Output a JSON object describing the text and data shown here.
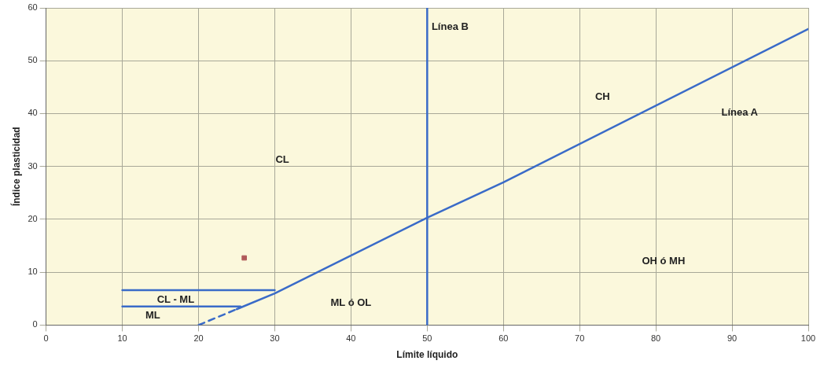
{
  "chart_data": {
    "type": "line",
    "xlabel": "Límite líquido",
    "ylabel": "Índice plasticidad",
    "xlim": [
      0,
      100
    ],
    "xticks": [
      0,
      10,
      20,
      30,
      40,
      50,
      60,
      70,
      80,
      90,
      100
    ],
    "ylim": [
      0,
      60
    ],
    "yticks": [
      0,
      10,
      20,
      30,
      40,
      50,
      60
    ],
    "grid": true,
    "series": [
      {
        "type": "line",
        "color": "#3a6bc8",
        "x": [
          20,
          25
        ],
        "values": [
          0,
          3
        ],
        "line_style": "dashed",
        "marker": "none"
      },
      {
        "type": "line",
        "color": "#3a6bc8",
        "x": [
          25,
          30,
          50,
          60,
          100
        ],
        "values": [
          3,
          6,
          20.3,
          27,
          56
        ],
        "line_style": "solid",
        "marker": "none"
      },
      {
        "type": "line",
        "color": "#3a6bc8",
        "x": [
          50,
          50
        ],
        "values": [
          0,
          60
        ],
        "line_style": "solid",
        "marker": "none"
      },
      {
        "type": "line",
        "color": "#3a6bc8",
        "x": [
          10,
          30
        ],
        "values": [
          6.6,
          6.6
        ],
        "line_style": "solid",
        "marker": "none"
      },
      {
        "type": "line",
        "color": "#3a6bc8",
        "x": [
          10,
          25.5
        ],
        "values": [
          3.5,
          3.5
        ],
        "line_style": "solid",
        "marker": "none"
      },
      {
        "type": "scatter",
        "color": "#b05a5a",
        "x": [
          26
        ],
        "values": [
          12.7
        ],
        "marker": "square"
      }
    ],
    "annotations": [
      "Línea B",
      "Línea A",
      "CH",
      "CL",
      "OH ó MH",
      "ML ó OL",
      "CL - ML",
      "ML"
    ]
  }
}
